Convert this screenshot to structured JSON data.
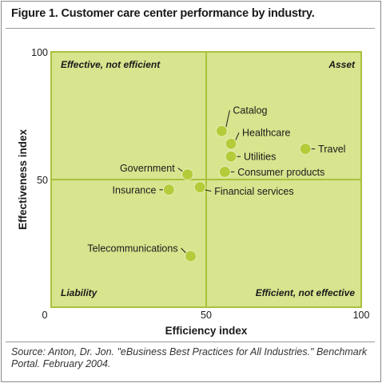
{
  "figure": {
    "title": "Figure 1. Customer care center performance by industry.",
    "source": "Source: Anton, Dr. Jon. \"eBusiness Best Practices for All Industries.\" Benchmark Portal. February 2004."
  },
  "colors": {
    "plot_background": "#d8e48e",
    "grid_line": "#a9c23c",
    "point": "#b5cc3a",
    "point_stroke": "#e8efb8",
    "text": "#1a1a1a"
  },
  "chart_data": {
    "type": "scatter",
    "title": "Figure 1. Customer care center performance by industry.",
    "xlabel": "Efficiency index",
    "ylabel": "Effectiveness index",
    "xlim": [
      0,
      100
    ],
    "ylim": [
      0,
      100
    ],
    "xticks": [
      "0",
      "50",
      "100"
    ],
    "yticks": [
      "50",
      "100"
    ],
    "dividers": {
      "x": 50,
      "y": 50
    },
    "grid": false,
    "quadrants": [
      {
        "id": "top-left",
        "label": "Effective, not efficient"
      },
      {
        "id": "top-right",
        "label": "Asset"
      },
      {
        "id": "bottom-left",
        "label": "Liability"
      },
      {
        "id": "bottom-right",
        "label": "Efficient, not effective"
      }
    ],
    "points": [
      {
        "label": "Catalog",
        "x": 55,
        "y": 69
      },
      {
        "label": "Healthcare",
        "x": 58,
        "y": 64
      },
      {
        "label": "Utilities",
        "x": 58,
        "y": 59
      },
      {
        "label": "Travel",
        "x": 82,
        "y": 62
      },
      {
        "label": "Consumer products",
        "x": 56,
        "y": 53
      },
      {
        "label": "Government",
        "x": 44,
        "y": 52
      },
      {
        "label": "Financial services",
        "x": 48,
        "y": 47
      },
      {
        "label": "Insurance",
        "x": 38,
        "y": 46
      },
      {
        "label": "Telecommunications",
        "x": 45,
        "y": 20
      }
    ]
  }
}
